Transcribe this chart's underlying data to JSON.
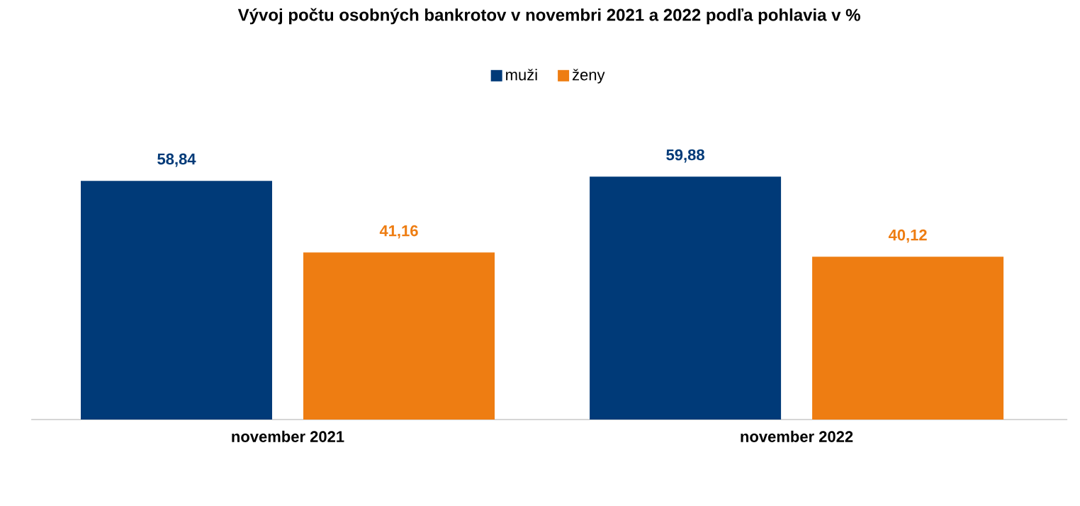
{
  "chart_data": {
    "type": "bar",
    "title": "Vývoj počtu osobných bankrotov v novembri 2021 a 2022 podľa pohlavia v %",
    "categories": [
      "november 2021",
      "november 2022"
    ],
    "series": [
      {
        "name": "muži",
        "color": "#003a78",
        "values": [
          58.84,
          59.88
        ],
        "value_labels": [
          "58,84",
          "59,88"
        ]
      },
      {
        "name": "ženy",
        "color": "#ee7d12",
        "values": [
          41.16,
          40.12
        ],
        "value_labels": [
          "41,16",
          "40,12"
        ]
      }
    ],
    "legend": "top"
  }
}
